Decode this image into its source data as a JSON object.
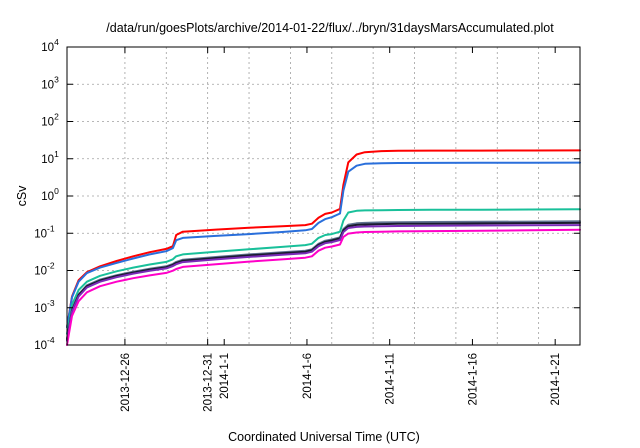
{
  "chart_data": {
    "type": "line",
    "title": "/data/run/goesPlots/archive/2014-01-22/flux/../bryn/31daysMarsAccumulated.plot",
    "xlabel": "Coordinated Universal Time (UTC)",
    "ylabel": "cSv",
    "yscale": "log",
    "ylim": [
      0.0001,
      10000
    ],
    "xlim_days": [
      0,
      31
    ],
    "y_ticks": [
      {
        "value": 0.0001,
        "base": "10",
        "exp": "-4"
      },
      {
        "value": 0.001,
        "base": "10",
        "exp": "-3"
      },
      {
        "value": 0.01,
        "base": "10",
        "exp": "-2"
      },
      {
        "value": 0.1,
        "base": "10",
        "exp": "-1"
      },
      {
        "value": 1,
        "base": "10",
        "exp": "0"
      },
      {
        "value": 10,
        "base": "10",
        "exp": "1"
      },
      {
        "value": 100,
        "base": "10",
        "exp": "2"
      },
      {
        "value": 1000,
        "base": "10",
        "exp": "3"
      },
      {
        "value": 10000,
        "base": "10",
        "exp": "4"
      }
    ],
    "x_ticks": [
      {
        "day": 3.5,
        "label": "2013-12-26"
      },
      {
        "day": 8.5,
        "label": "2013-12-31"
      },
      {
        "day": 9.5,
        "label": "2014-1-1"
      },
      {
        "day": 14.5,
        "label": "2014-1-6"
      },
      {
        "day": 19.5,
        "label": "2014-1-11"
      },
      {
        "day": 24.5,
        "label": "2014-1-16"
      },
      {
        "day": 29.5,
        "label": "2014-1-21"
      }
    ],
    "x_grid_days": [
      3.5,
      6,
      8.5,
      11,
      13.5,
      16,
      18.5,
      21,
      23.5,
      26,
      28.5,
      31
    ],
    "series": [
      {
        "name": "series-red",
        "color": "#ff0000",
        "x": [
          0,
          0.3,
          0.7,
          1.2,
          2,
          3,
          4,
          5,
          6,
          6.4,
          6.6,
          7,
          9,
          11,
          13,
          14.4,
          14.8,
          15.2,
          15.6,
          16,
          16.5,
          16.7,
          17,
          17.5,
          18,
          19,
          20,
          22,
          25,
          28,
          31
        ],
        "y": [
          0.0003,
          0.002,
          0.0055,
          0.009,
          0.013,
          0.018,
          0.024,
          0.031,
          0.038,
          0.045,
          0.09,
          0.11,
          0.125,
          0.14,
          0.155,
          0.165,
          0.18,
          0.26,
          0.33,
          0.36,
          0.45,
          2,
          8,
          13,
          15,
          16,
          16.3,
          16.5,
          16.6,
          16.7,
          16.8
        ]
      },
      {
        "name": "series-blue",
        "color": "#2a6fdb",
        "x": [
          0,
          0.3,
          0.7,
          1.2,
          2,
          3,
          4,
          5,
          6,
          6.4,
          6.6,
          7,
          9,
          11,
          13,
          14.4,
          14.8,
          15.2,
          15.6,
          16,
          16.5,
          16.7,
          17,
          17.5,
          18,
          19,
          20,
          22,
          25,
          28,
          31
        ],
        "y": [
          0.0003,
          0.0019,
          0.005,
          0.0085,
          0.012,
          0.016,
          0.021,
          0.027,
          0.033,
          0.04,
          0.065,
          0.075,
          0.085,
          0.095,
          0.108,
          0.12,
          0.13,
          0.19,
          0.24,
          0.27,
          0.34,
          1.4,
          4.5,
          6.5,
          7.3,
          7.6,
          7.7,
          7.75,
          7.8,
          7.85,
          7.9
        ]
      },
      {
        "name": "series-teal",
        "color": "#19c09a",
        "x": [
          0,
          0.3,
          0.7,
          1.2,
          2,
          3,
          4,
          5,
          6,
          6.4,
          6.6,
          7,
          9,
          11,
          13,
          14.4,
          14.8,
          15.2,
          15.6,
          16,
          16.5,
          16.7,
          17,
          17.5,
          18,
          19,
          20,
          22,
          25,
          28,
          31
        ],
        "y": [
          0.0002,
          0.0012,
          0.003,
          0.005,
          0.0072,
          0.0095,
          0.012,
          0.0145,
          0.017,
          0.02,
          0.024,
          0.027,
          0.032,
          0.037,
          0.043,
          0.048,
          0.052,
          0.075,
          0.09,
          0.095,
          0.11,
          0.22,
          0.36,
          0.4,
          0.41,
          0.415,
          0.42,
          0.425,
          0.43,
          0.435,
          0.44
        ]
      },
      {
        "name": "series-slate",
        "color": "#5f7291",
        "x": [
          0,
          0.3,
          0.7,
          1.2,
          2,
          3,
          4,
          5,
          6,
          6.4,
          6.6,
          7,
          9,
          11,
          13,
          14.4,
          14.8,
          15.2,
          15.6,
          16,
          16.5,
          16.7,
          17,
          17.5,
          18,
          19,
          20,
          22,
          25,
          28,
          31
        ],
        "y": [
          0.00015,
          0.0009,
          0.0023,
          0.004,
          0.0057,
          0.0075,
          0.0093,
          0.0112,
          0.013,
          0.015,
          0.017,
          0.0195,
          0.023,
          0.027,
          0.031,
          0.034,
          0.037,
          0.052,
          0.063,
          0.068,
          0.078,
          0.13,
          0.17,
          0.185,
          0.19,
          0.195,
          0.198,
          0.2,
          0.203,
          0.206,
          0.21
        ]
      },
      {
        "name": "series-black",
        "color": "#1a1a2e",
        "x": [
          0,
          0.3,
          0.7,
          1.2,
          2,
          3,
          4,
          5,
          6,
          6.4,
          6.6,
          7,
          9,
          11,
          13,
          14.4,
          14.8,
          15.2,
          15.6,
          16,
          16.5,
          16.7,
          17,
          17.5,
          18,
          19,
          20,
          22,
          25,
          28,
          31
        ],
        "y": [
          0.00014,
          0.00085,
          0.0022,
          0.0038,
          0.0054,
          0.0071,
          0.0088,
          0.0106,
          0.0123,
          0.0142,
          0.016,
          0.0183,
          0.0216,
          0.0254,
          0.029,
          0.032,
          0.035,
          0.049,
          0.059,
          0.064,
          0.073,
          0.12,
          0.155,
          0.168,
          0.172,
          0.176,
          0.179,
          0.181,
          0.184,
          0.187,
          0.19
        ]
      },
      {
        "name": "series-purple",
        "color": "#7a2bb8",
        "x": [
          0,
          0.3,
          0.7,
          1.2,
          2,
          3,
          4,
          5,
          6,
          6.4,
          6.6,
          7,
          9,
          11,
          13,
          14.4,
          14.8,
          15.2,
          15.6,
          16,
          16.5,
          16.7,
          17,
          17.5,
          18,
          19,
          20,
          22,
          25,
          28,
          31
        ],
        "y": [
          0.00013,
          0.0008,
          0.002,
          0.0035,
          0.005,
          0.0066,
          0.0082,
          0.0098,
          0.0114,
          0.0132,
          0.0148,
          0.0168,
          0.0198,
          0.0232,
          0.0265,
          0.029,
          0.032,
          0.045,
          0.054,
          0.058,
          0.066,
          0.108,
          0.138,
          0.148,
          0.152,
          0.155,
          0.157,
          0.159,
          0.161,
          0.163,
          0.165
        ]
      },
      {
        "name": "series-magenta",
        "color": "#ff00c8",
        "x": [
          0,
          0.3,
          0.7,
          1.2,
          2,
          3,
          4,
          5,
          6,
          6.4,
          6.6,
          7,
          9,
          11,
          13,
          14.4,
          14.8,
          15.2,
          15.6,
          16,
          16.5,
          16.7,
          17,
          17.5,
          18,
          19,
          20,
          22,
          25,
          28,
          31
        ],
        "y": [
          0.0001,
          0.0006,
          0.0015,
          0.0026,
          0.0038,
          0.005,
          0.0062,
          0.0074,
          0.0086,
          0.0099,
          0.011,
          0.0125,
          0.0148,
          0.0173,
          0.0198,
          0.022,
          0.024,
          0.034,
          0.041,
          0.044,
          0.05,
          0.08,
          0.098,
          0.105,
          0.108,
          0.11,
          0.112,
          0.114,
          0.117,
          0.12,
          0.124
        ]
      }
    ]
  }
}
